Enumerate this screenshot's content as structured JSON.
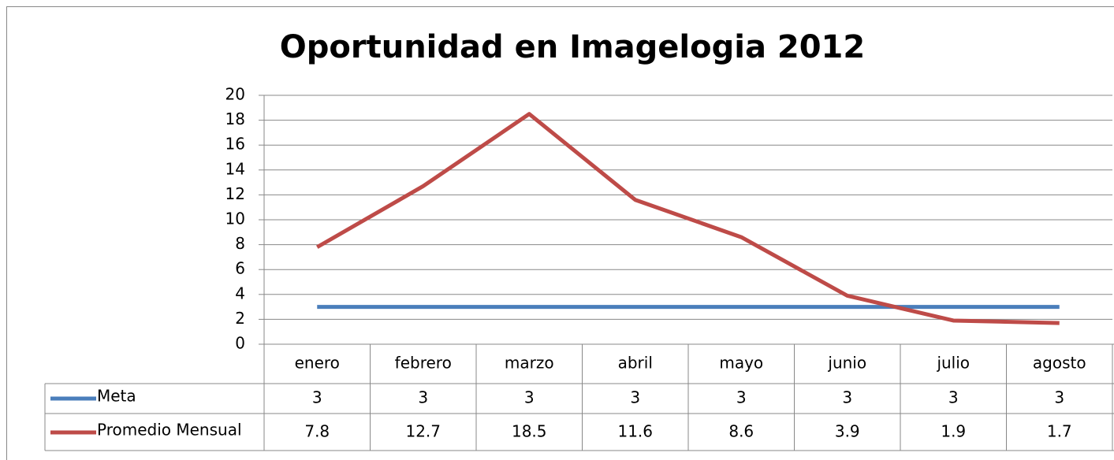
{
  "chart_data": {
    "type": "line",
    "title": "Oportunidad en Imagelogia 2012",
    "categories": [
      "enero",
      "febrero",
      "marzo",
      "abril",
      "mayo",
      "junio",
      "julio",
      "agosto"
    ],
    "series": [
      {
        "name": "Meta",
        "color": "#4a7ebb",
        "values": [
          3,
          3,
          3,
          3,
          3,
          3,
          3,
          3
        ]
      },
      {
        "name": "Promedio Mensual",
        "color": "#be4b48",
        "values": [
          7.8,
          12.7,
          18.5,
          11.6,
          8.6,
          3.9,
          1.9,
          1.7
        ]
      }
    ],
    "ylim": [
      0,
      20
    ],
    "yticks": [
      0,
      2,
      4,
      6,
      8,
      10,
      12,
      14,
      16,
      18,
      20
    ],
    "grid": true,
    "data_table": true
  }
}
